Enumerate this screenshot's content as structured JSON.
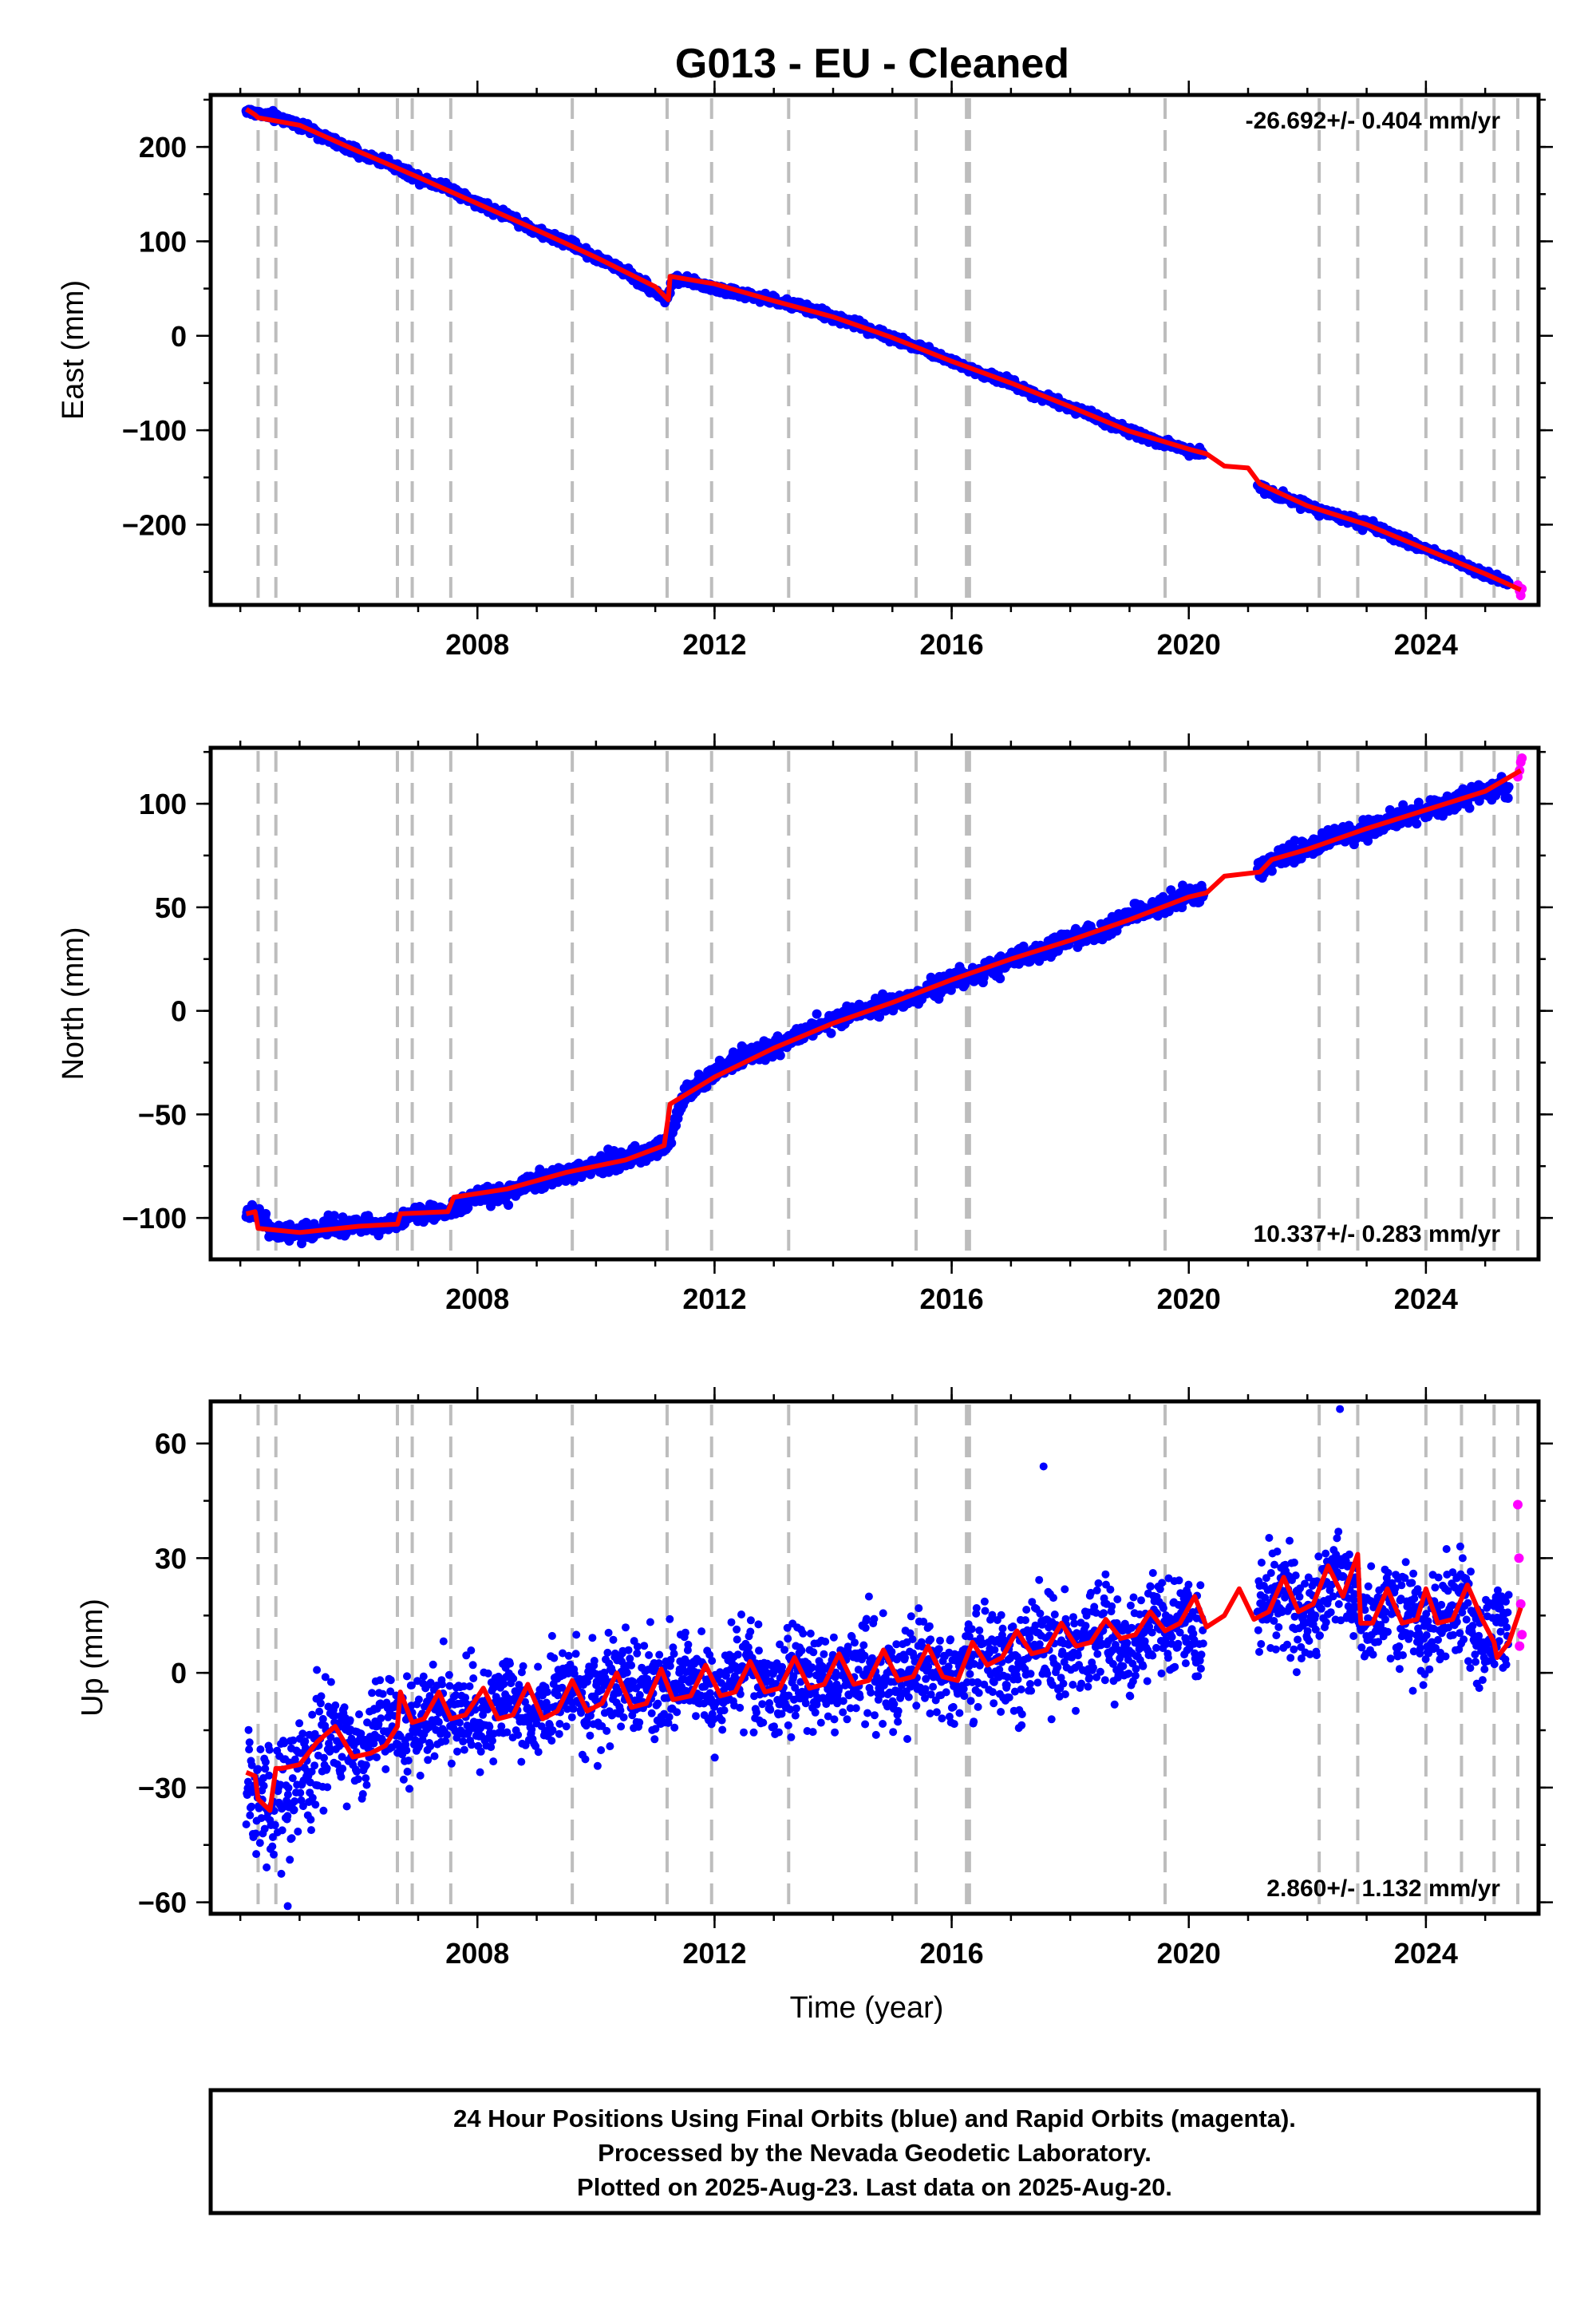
{
  "title": "G013  - EU - Cleaned",
  "colors": {
    "final": "#0000ff",
    "rapid": "#ff00ff",
    "fit": "#ff0000",
    "events": "#bdbdbd"
  },
  "chart_data": [
    {
      "type": "scatter",
      "component": "East",
      "ylabel": "East (mm)",
      "xlabel": "",
      "xlim": [
        2003.5,
        2025.9
      ],
      "ylim": [
        -285,
        255
      ],
      "xticks": [
        2008,
        2012,
        2016,
        2020,
        2024
      ],
      "yticks": [
        200,
        100,
        0,
        -100,
        -200
      ],
      "ytick_labels": [
        "200",
        "100",
        "0",
        "−100",
        "−200"
      ],
      "rate_text": "-26.692+/- 0.404 mm/yr",
      "rate_position": "top-right",
      "grid": false,
      "series": [
        {
          "name": "Final Orbits (blue)",
          "x": [
            2004.1,
            2004.5,
            2005.0,
            2005.5,
            2006.0,
            2006.5,
            2007.0,
            2007.5,
            2008.0,
            2008.5,
            2009.0,
            2009.5,
            2010.0,
            2010.5,
            2011.0,
            2011.2,
            2011.3,
            2011.6,
            2012.0,
            2012.5,
            2013.0,
            2013.5,
            2014.0,
            2014.5,
            2015.0,
            2015.5,
            2016.0,
            2016.5,
            2017.0,
            2017.5,
            2018.0,
            2018.5,
            2019.0,
            2019.5,
            2020.0,
            2020.3,
            2021.2,
            2021.5,
            2022.0,
            2022.5,
            2023.0,
            2023.5,
            2024.0,
            2024.5,
            2025.0,
            2025.4
          ],
          "y": [
            238,
            233,
            224,
            208,
            193,
            183,
            167,
            157,
            140,
            128,
            110,
            100,
            83,
            68,
            47,
            38,
            60,
            56,
            51,
            43,
            37,
            30,
            20,
            10,
            -3,
            -13,
            -27,
            -40,
            -50,
            -64,
            -75,
            -88,
            -101,
            -113,
            -121,
            -125,
            -160,
            -168,
            -180,
            -191,
            -200,
            -213,
            -226,
            -238,
            -252,
            -262
          ]
        },
        {
          "name": "Rapid Orbits (magenta)",
          "x": [
            2025.55,
            2025.58,
            2025.6,
            2025.62
          ],
          "y": [
            -264,
            -270,
            -275,
            -268
          ]
        }
      ],
      "fit": {
        "x": [
          2004.1,
          2004.25,
          2004.3,
          2005.0,
          2006.0,
          2007.0,
          2008.0,
          2009.0,
          2010.0,
          2011.0,
          2011.22,
          2011.25,
          2012.0,
          2013.0,
          2014.0,
          2015.0,
          2016.0,
          2017.0,
          2018.0,
          2019.0,
          2020.0,
          2020.3,
          2020.6,
          2021.0,
          2021.2,
          2022.0,
          2023.0,
          2024.0,
          2025.0,
          2025.6
        ],
        "y": [
          240,
          234,
          231,
          223,
          195,
          168,
          140,
          112,
          83,
          52,
          38,
          63,
          55,
          37,
          20,
          -2,
          -27,
          -50,
          -75,
          -101,
          -120,
          -125,
          -138,
          -140,
          -157,
          -180,
          -200,
          -226,
          -252,
          -269
        ]
      },
      "events": [
        2004.3,
        2004.6,
        2006.65,
        2006.9,
        2007.55,
        2009.6,
        2011.2,
        2011.95,
        2013.25,
        2015.4,
        2016.25,
        2016.3,
        2019.6,
        2022.2,
        2022.85,
        2024.0,
        2024.6,
        2025.15,
        2025.55
      ]
    },
    {
      "type": "scatter",
      "component": "North",
      "ylabel": "North (mm)",
      "xlabel": "",
      "xlim": [
        2003.5,
        2025.9
      ],
      "ylim": [
        -120,
        127
      ],
      "xticks": [
        2008,
        2012,
        2016,
        2020,
        2024
      ],
      "yticks": [
        100,
        50,
        0,
        -50,
        -100
      ],
      "ytick_labels": [
        "100",
        "50",
        "0",
        "−50",
        "−100"
      ],
      "rate_text": "10.337+/- 0.283 mm/yr",
      "rate_position": "bottom-right",
      "grid": false,
      "series": [
        {
          "name": "Final Orbits (blue)",
          "x": [
            2004.1,
            2004.3,
            2004.5,
            2005.0,
            2005.5,
            2006.0,
            2006.5,
            2007.0,
            2007.5,
            2008.0,
            2008.5,
            2009.0,
            2009.5,
            2010.0,
            2010.5,
            2011.0,
            2011.2,
            2011.5,
            2012.0,
            2012.5,
            2013.0,
            2013.5,
            2014.0,
            2014.5,
            2015.0,
            2015.5,
            2016.0,
            2016.5,
            2017.0,
            2017.5,
            2018.0,
            2018.5,
            2019.0,
            2019.5,
            2020.0,
            2020.3,
            2021.2,
            2021.5,
            2022.0,
            2022.5,
            2023.0,
            2023.5,
            2024.0,
            2024.5,
            2025.0,
            2025.4
          ],
          "y": [
            -98,
            -96,
            -106,
            -108,
            -104,
            -104,
            -103,
            -97,
            -97,
            -89,
            -88,
            -82,
            -78,
            -75,
            -72,
            -67,
            -65,
            -40,
            -30,
            -22,
            -18,
            -10,
            -5,
            0,
            4,
            8,
            15,
            18,
            25,
            28,
            35,
            38,
            46,
            50,
            56,
            57,
            68,
            74,
            78,
            84,
            88,
            93,
            97,
            101,
            106,
            108
          ]
        },
        {
          "name": "Rapid Orbits (magenta)",
          "x": [
            2025.55,
            2025.58,
            2025.6,
            2025.62
          ],
          "y": [
            113,
            116,
            120,
            122
          ]
        }
      ],
      "fit": {
        "x": [
          2004.1,
          2004.25,
          2004.3,
          2005.0,
          2006.0,
          2006.65,
          2006.7,
          2007.5,
          2007.6,
          2008.5,
          2009.5,
          2010.5,
          2011.15,
          2011.25,
          2012.0,
          2013.0,
          2014.0,
          2015.0,
          2016.0,
          2017.0,
          2018.0,
          2019.0,
          2020.0,
          2020.3,
          2020.6,
          2021.2,
          2021.4,
          2022.0,
          2023.0,
          2024.0,
          2025.0,
          2025.6
        ],
        "y": [
          -98,
          -97,
          -105,
          -107,
          -104,
          -103,
          -98,
          -97,
          -90,
          -86,
          -78,
          -72,
          -65,
          -45,
          -32,
          -18,
          -6,
          4,
          15,
          25,
          34,
          44,
          55,
          57,
          65,
          67,
          73,
          78,
          88,
          97,
          106,
          116
        ]
      },
      "events": [
        2004.3,
        2004.6,
        2006.65,
        2006.9,
        2007.55,
        2009.6,
        2011.2,
        2011.95,
        2013.25,
        2015.4,
        2016.25,
        2016.3,
        2019.6,
        2022.2,
        2022.85,
        2024.0,
        2024.6,
        2025.15,
        2025.55
      ]
    },
    {
      "type": "scatter",
      "component": "Up",
      "ylabel": "Up (mm)",
      "xlabel": "Time (year)",
      "xlim": [
        2003.5,
        2025.9
      ],
      "ylim": [
        -63,
        71
      ],
      "xticks": [
        2008,
        2012,
        2016,
        2020,
        2024
      ],
      "yticks": [
        60,
        30,
        0,
        -30,
        -60
      ],
      "ytick_labels": [
        "60",
        "30",
        "0",
        "−30",
        "−60"
      ],
      "rate_text": "2.860+/- 1.132 mm/yr",
      "rate_position": "bottom-right",
      "grid": false,
      "series": [
        {
          "name": "Final Orbits (blue)",
          "x": [
            2004.1,
            2004.5,
            2005.0,
            2005.5,
            2006.0,
            2006.5,
            2007.0,
            2007.5,
            2008.0,
            2008.5,
            2009.0,
            2009.5,
            2010.0,
            2010.5,
            2011.0,
            2011.5,
            2012.0,
            2012.5,
            2013.0,
            2013.5,
            2014.0,
            2014.5,
            2015.0,
            2015.5,
            2016.0,
            2016.5,
            2017.0,
            2017.5,
            2018.0,
            2018.5,
            2019.0,
            2019.5,
            2020.0,
            2020.2,
            2021.1,
            2021.5,
            2022.0,
            2022.5,
            2023.0,
            2023.5,
            2024.0,
            2024.5,
            2025.0,
            2025.4
          ],
          "y": [
            -28,
            -36,
            -26,
            -15,
            -20,
            -12,
            -13,
            -8,
            -12,
            -6,
            -12,
            -4,
            -8,
            0,
            -7,
            1,
            -6,
            2,
            -5,
            0,
            -5,
            3,
            -4,
            2,
            -3,
            6,
            1,
            9,
            4,
            11,
            5,
            14,
            11,
            12,
            14,
            20,
            15,
            27,
            13,
            18,
            12,
            20,
            6,
            15
          ],
          "callouts": {
            "x": [
              2017.55,
              2022.55,
              2004.8
            ],
            "y": [
              54,
              69,
              -61
            ]
          }
        },
        {
          "name": "Rapid Orbits (magenta)",
          "x": [
            2025.55,
            2025.57,
            2025.6,
            2025.62,
            2025.58
          ],
          "y": [
            44,
            30,
            18,
            10,
            7
          ]
        }
      ],
      "fit": {
        "x": [
          2004.1,
          2004.25,
          2004.3,
          2004.5,
          2004.6,
          2004.7,
          2005.0,
          2005.3,
          2005.6,
          2005.9,
          2006.2,
          2006.45,
          2006.65,
          2006.7,
          2006.9,
          2007.1,
          2007.35,
          2007.55,
          2007.8,
          2008.1,
          2008.35,
          2008.6,
          2008.85,
          2009.1,
          2009.35,
          2009.6,
          2009.85,
          2010.1,
          2010.35,
          2010.6,
          2010.85,
          2011.1,
          2011.3,
          2011.6,
          2011.85,
          2012.1,
          2012.35,
          2012.6,
          2012.85,
          2013.1,
          2013.35,
          2013.6,
          2013.85,
          2014.1,
          2014.35,
          2014.6,
          2014.85,
          2015.1,
          2015.35,
          2015.6,
          2015.85,
          2016.1,
          2016.35,
          2016.6,
          2016.85,
          2017.1,
          2017.35,
          2017.6,
          2017.85,
          2018.1,
          2018.35,
          2018.6,
          2018.85,
          2019.1,
          2019.35,
          2019.6,
          2019.85,
          2020.1,
          2020.3,
          2020.6,
          2020.85,
          2021.1,
          2021.35,
          2021.6,
          2021.85,
          2022.1,
          2022.35,
          2022.6,
          2022.85,
          2022.9,
          2023.1,
          2023.35,
          2023.6,
          2023.85,
          2024.0,
          2024.2,
          2024.45,
          2024.7,
          2024.95,
          2025.15,
          2025.2,
          2025.4,
          2025.6
        ],
        "y": [
          -26,
          -27,
          -33,
          -36,
          -25,
          -25,
          -24,
          -18,
          -14,
          -22,
          -21,
          -19,
          -14,
          -5,
          -13,
          -12,
          -5,
          -12,
          -11,
          -4,
          -12,
          -11,
          -3,
          -12,
          -10,
          -2,
          -10,
          -8,
          0,
          -9,
          -8,
          1,
          -7,
          -6,
          2,
          -6,
          -5,
          3,
          -5,
          -4,
          4,
          -4,
          -3,
          5,
          -3,
          -2,
          6,
          -2,
          -1,
          7,
          -1,
          -2,
          8,
          2,
          4,
          11,
          5,
          6,
          13,
          7,
          8,
          14,
          9,
          10,
          16,
          11,
          13,
          20,
          12,
          15,
          22,
          14,
          16,
          25,
          16,
          18,
          28,
          20,
          31,
          13,
          13,
          22,
          13,
          14,
          22,
          13,
          14,
          23,
          14,
          8,
          4,
          8,
          17
        ]
      },
      "events": [
        2004.3,
        2004.6,
        2006.65,
        2006.9,
        2007.55,
        2009.6,
        2011.2,
        2011.95,
        2013.25,
        2015.4,
        2016.25,
        2016.3,
        2019.6,
        2022.2,
        2022.85,
        2024.0,
        2024.6,
        2025.15,
        2025.55
      ]
    }
  ],
  "footer": {
    "line1": "24 Hour Positions Using Final Orbits (blue) and Rapid Orbits (magenta).",
    "line2": "Processed by the Nevada Geodetic Laboratory.",
    "line3": "Plotted on 2025-Aug-23. Last data on 2025-Aug-20."
  }
}
